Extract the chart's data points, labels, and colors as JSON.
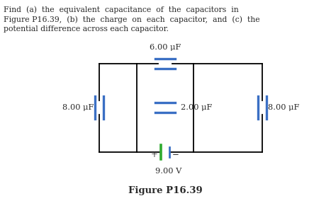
{
  "text_line1": "Find  (a)  the  equivalent  capacitance  of  the  capacitors  in",
  "text_line2": "Figure P16.39,  (b)  the  charge  on  each  capacitor,  and  (c)  the",
  "text_line3": "potential difference across each capacitor.",
  "cap_6_label": "6.00 μF",
  "cap_2_label": "2.00 μF",
  "cap_8L_label": "8.00 μF",
  "cap_8R_label": "8.00 μF",
  "battery_label": "9.00 V",
  "plus_label": "+",
  "minus_label": "−",
  "figure_caption": "Figure P16.39",
  "bg_color": "#ffffff",
  "wire_color": "#000000",
  "cap_color_blue": "#3a6fc4",
  "cap_color_green": "#2eaa2e",
  "text_color": "#2b2b2b"
}
